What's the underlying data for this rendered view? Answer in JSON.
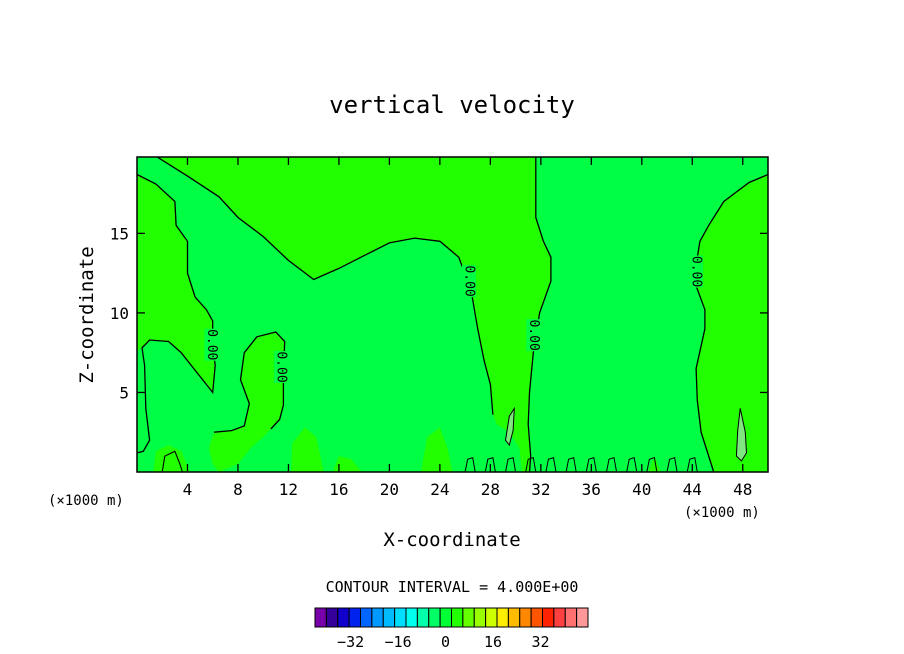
{
  "chart_data": {
    "type": "contour",
    "title": "vertical velocity",
    "xlabel": "X-coordinate",
    "ylabel": "Z-coordinate",
    "x_unit": "(×1000 m)",
    "y_unit": "(×1000 m)",
    "xlim": [
      0,
      50
    ],
    "ylim": [
      0,
      19.8
    ],
    "x_ticks": [
      4,
      8,
      12,
      16,
      20,
      24,
      28,
      32,
      36,
      40,
      44,
      48
    ],
    "y_ticks": [
      5,
      10,
      15
    ],
    "contour_interval_text": "CONTOUR INTERVAL = 4.000E+00",
    "contour_labels": [
      {
        "text": "0.00",
        "x": 5.9,
        "z": 8.0
      },
      {
        "text": "0.00",
        "x": 11.4,
        "z": 6.6
      },
      {
        "text": "0.00",
        "x": 26.3,
        "z": 12.0
      },
      {
        "text": "0.00",
        "x": 31.4,
        "z": 8.6
      },
      {
        "text": "0.00",
        "x": 44.3,
        "z": 12.6
      }
    ],
    "contour_lines": [
      [
        [
          1.6,
          19.8
        ],
        [
          4,
          18.6
        ],
        [
          6.5,
          17.3
        ],
        [
          8,
          16
        ],
        [
          10,
          14.8
        ],
        [
          12,
          13.3
        ],
        [
          14,
          12.1
        ],
        [
          16,
          12.8
        ],
        [
          18,
          13.6
        ],
        [
          20,
          14.4
        ],
        [
          22,
          14.7
        ],
        [
          24,
          14.5
        ],
        [
          25.5,
          13.5
        ],
        [
          26.5,
          11.3
        ],
        [
          27,
          9
        ],
        [
          27.5,
          7
        ],
        [
          28,
          5.5
        ],
        [
          28.2,
          3.6
        ]
      ],
      [
        [
          0,
          18.7
        ],
        [
          1.5,
          18.1
        ],
        [
          3,
          17
        ],
        [
          3.1,
          15.5
        ],
        [
          4,
          14.5
        ],
        [
          4,
          12.5
        ],
        [
          4.6,
          11
        ],
        [
          5.5,
          10.2
        ],
        [
          6,
          9.5
        ],
        [
          6,
          8
        ],
        [
          6.2,
          6.7
        ],
        [
          6,
          5
        ],
        [
          5.5,
          5.5
        ],
        [
          4.5,
          6.5
        ],
        [
          3.5,
          7.5
        ],
        [
          2.5,
          8.2
        ],
        [
          1,
          8.3
        ],
        [
          0.4,
          7.8
        ],
        [
          0.6,
          6.7
        ],
        [
          0.7,
          4
        ],
        [
          1,
          2
        ],
        [
          0.5,
          1.3
        ],
        [
          0,
          1.2
        ]
      ],
      [
        [
          31.6,
          19.8
        ],
        [
          31.6,
          16
        ],
        [
          32.2,
          14.5
        ],
        [
          32.8,
          13.5
        ],
        [
          32.8,
          12
        ],
        [
          31.9,
          10
        ],
        [
          31.4,
          7.5
        ],
        [
          31.1,
          5
        ],
        [
          31,
          3
        ],
        [
          31.2,
          1
        ],
        [
          31.1,
          0
        ]
      ],
      [
        [
          50,
          18.7
        ],
        [
          48.5,
          18.2
        ],
        [
          46.5,
          17
        ],
        [
          45.3,
          15.5
        ],
        [
          44.6,
          14.5
        ],
        [
          44.3,
          13
        ],
        [
          44.3,
          11.7
        ],
        [
          45,
          10.2
        ],
        [
          45,
          9
        ],
        [
          44.3,
          6.5
        ],
        [
          44.4,
          4.5
        ],
        [
          44.7,
          2.5
        ],
        [
          45.5,
          0.5
        ],
        [
          45.7,
          0
        ]
      ],
      [
        [
          6.1,
          2.5
        ],
        [
          7.5,
          2.6
        ],
        [
          8.5,
          2.9
        ],
        [
          8.9,
          4.3
        ],
        [
          8.2,
          5.8
        ],
        [
          8.5,
          7.5
        ],
        [
          9.5,
          8.5
        ],
        [
          11,
          8.8
        ],
        [
          11.7,
          8.2
        ],
        [
          11.6,
          6
        ],
        [
          11.6,
          4.2
        ],
        [
          11.3,
          3.3
        ],
        [
          10.6,
          2.7
        ]
      ]
    ],
    "fill_colors": {
      "zero_band": "#22ff00",
      "positive_band": "#00ff44",
      "small_positive": "#7fe77f"
    },
    "colorbar": {
      "tick_labels": [
        "−32",
        "−16",
        "0",
        "16",
        "32"
      ],
      "tick_values": [
        -32,
        -16,
        0,
        16,
        32
      ],
      "colors": [
        "#7700aa",
        "#330099",
        "#1100cc",
        "#0022ee",
        "#0066ff",
        "#0099ff",
        "#00bbff",
        "#00ddff",
        "#00ffee",
        "#00ffaa",
        "#00ff66",
        "#00ff33",
        "#22ff00",
        "#66ff00",
        "#99ff00",
        "#ccff00",
        "#ffee00",
        "#ffbb00",
        "#ff8800",
        "#ff5500",
        "#ff2200",
        "#ff4040",
        "#ff7070",
        "#ff9999"
      ]
    }
  }
}
